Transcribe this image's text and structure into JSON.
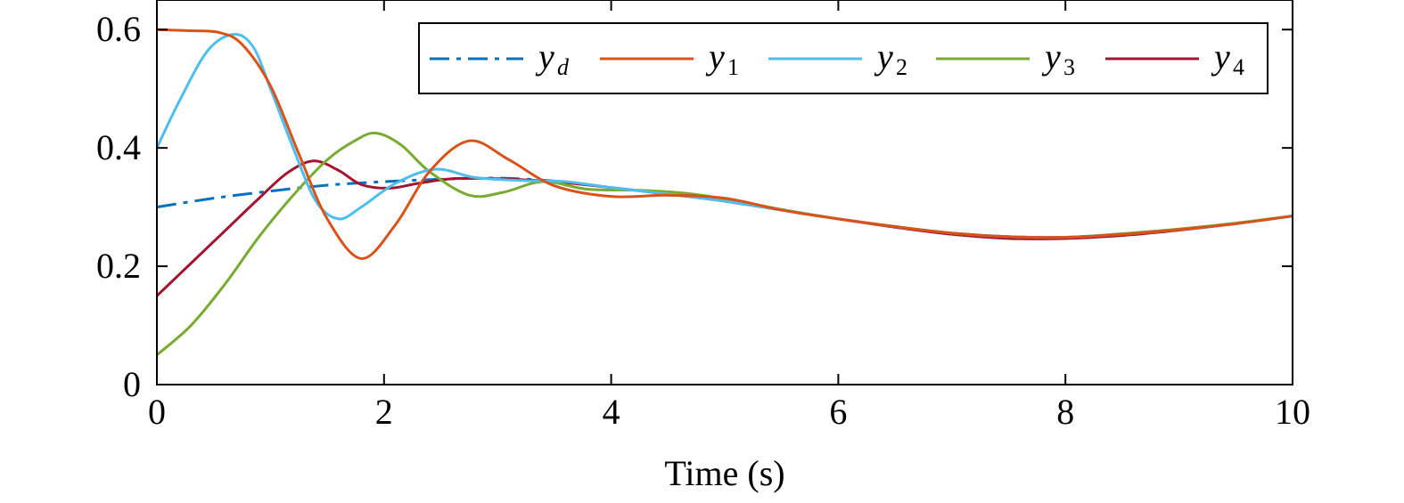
{
  "chart_data": {
    "type": "line",
    "title": "",
    "xlabel": "Time (s)",
    "ylabel": "",
    "xlim": [
      0,
      10
    ],
    "ylim": [
      0,
      0.65
    ],
    "xticks": [
      0,
      2,
      4,
      6,
      8,
      10
    ],
    "xtick_labels": [
      "0",
      "2",
      "4",
      "6",
      "8",
      "10"
    ],
    "yticks": [
      0,
      0.2,
      0.4,
      0.6
    ],
    "ytick_labels": [
      "0",
      "0.2",
      "0.4",
      "0.6"
    ],
    "grid": false,
    "legend_position": "top-right",
    "series": [
      {
        "name": "y_d",
        "symbol": "y",
        "subscript": "d",
        "color": "#0072BD",
        "dash": "dashdot",
        "x": [
          0,
          0.5,
          1,
          1.5,
          2,
          2.5,
          3,
          3.5,
          4,
          4.5,
          5,
          5.5,
          6,
          6.5,
          7,
          7.5,
          8,
          8.5,
          9,
          9.5,
          10
        ],
        "y": [
          0.3,
          0.315,
          0.327,
          0.337,
          0.343,
          0.347,
          0.349,
          0.344,
          0.333,
          0.322,
          0.31,
          0.295,
          0.28,
          0.267,
          0.256,
          0.25,
          0.249,
          0.254,
          0.262,
          0.272,
          0.285
        ]
      },
      {
        "name": "y_1",
        "symbol": "y",
        "subscript": "1",
        "color": "#D95319",
        "dash": "solid",
        "x": [
          0,
          0.3,
          0.55,
          0.75,
          1,
          1.25,
          1.5,
          1.8,
          2.1,
          2.4,
          2.75,
          3.1,
          3.5,
          4,
          4.5,
          5,
          5.5,
          6,
          6.5,
          7,
          7.5,
          8,
          8.5,
          9,
          9.5,
          10
        ],
        "y": [
          0.6,
          0.598,
          0.595,
          0.575,
          0.505,
          0.39,
          0.28,
          0.213,
          0.27,
          0.36,
          0.412,
          0.38,
          0.336,
          0.318,
          0.32,
          0.315,
          0.295,
          0.28,
          0.267,
          0.256,
          0.25,
          0.249,
          0.254,
          0.262,
          0.272,
          0.285
        ]
      },
      {
        "name": "y_2",
        "symbol": "y",
        "subscript": "2",
        "color": "#4DBEEE",
        "dash": "solid",
        "x": [
          0,
          0.2,
          0.45,
          0.68,
          0.85,
          1,
          1.2,
          1.4,
          1.6,
          1.8,
          2.1,
          2.45,
          2.8,
          3.2,
          3.6,
          4,
          4.5,
          5,
          5.5,
          6,
          6.5,
          7,
          7.5,
          8,
          8.5,
          9,
          9.5,
          10
        ],
        "y": [
          0.4,
          0.48,
          0.565,
          0.592,
          0.57,
          0.5,
          0.4,
          0.31,
          0.28,
          0.3,
          0.34,
          0.364,
          0.35,
          0.345,
          0.343,
          0.333,
          0.322,
          0.31,
          0.295,
          0.28,
          0.267,
          0.256,
          0.25,
          0.249,
          0.254,
          0.262,
          0.272,
          0.285
        ]
      },
      {
        "name": "y_3",
        "symbol": "y",
        "subscript": "3",
        "color": "#77AC30",
        "dash": "solid",
        "x": [
          0,
          0.3,
          0.6,
          0.9,
          1.2,
          1.5,
          1.75,
          1.93,
          2.15,
          2.4,
          2.75,
          3.05,
          3.4,
          3.8,
          4.3,
          4.8,
          5.5,
          6,
          6.5,
          7,
          7.5,
          8,
          8.5,
          9,
          9.5,
          10
        ],
        "y": [
          0.05,
          0.1,
          0.17,
          0.25,
          0.32,
          0.38,
          0.413,
          0.425,
          0.405,
          0.36,
          0.32,
          0.325,
          0.343,
          0.33,
          0.328,
          0.32,
          0.296,
          0.28,
          0.267,
          0.256,
          0.25,
          0.249,
          0.255,
          0.263,
          0.273,
          0.285
        ]
      },
      {
        "name": "y_4",
        "symbol": "y",
        "subscript": "4",
        "color": "#A2142F",
        "dash": "solid",
        "x": [
          0,
          0.3,
          0.6,
          0.9,
          1.15,
          1.38,
          1.6,
          1.8,
          2.05,
          2.3,
          2.6,
          3,
          3.5,
          4,
          4.5,
          5,
          5.5,
          6,
          6.5,
          7,
          7.5,
          8,
          8.5,
          9,
          9.5,
          10
        ],
        "y": [
          0.15,
          0.205,
          0.26,
          0.315,
          0.358,
          0.378,
          0.362,
          0.338,
          0.332,
          0.34,
          0.348,
          0.348,
          0.343,
          0.333,
          0.322,
          0.31,
          0.295,
          0.28,
          0.266,
          0.254,
          0.247,
          0.247,
          0.252,
          0.261,
          0.272,
          0.285
        ]
      }
    ]
  }
}
